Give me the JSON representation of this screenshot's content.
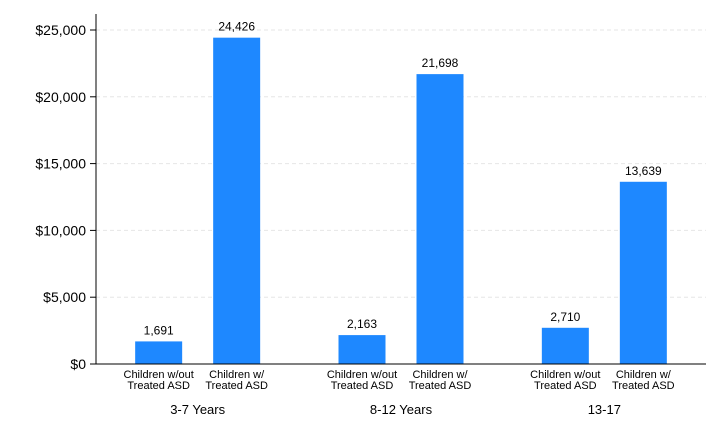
{
  "chart_data": {
    "type": "bar",
    "title": "",
    "xlabel": "",
    "ylabel": "",
    "ylim": [
      0,
      25000
    ],
    "yticks": [
      0,
      5000,
      10000,
      15000,
      20000,
      25000
    ],
    "ytick_labels": [
      "$0",
      "$5,000",
      "$10,000",
      "$15,000",
      "$20,000",
      "$25,000"
    ],
    "grid": true,
    "bar_color": "#1e88ff",
    "groups": [
      {
        "label": "3-7 Years",
        "bars": [
          {
            "category": [
              "Children w/out",
              "Treated ASD"
            ],
            "value": 1691,
            "value_label": "1,691"
          },
          {
            "category": [
              "Children w/",
              "Treated ASD"
            ],
            "value": 24426,
            "value_label": "24,426"
          }
        ]
      },
      {
        "label": "8-12 Years",
        "bars": [
          {
            "category": [
              "Children w/out",
              "Treated ASD"
            ],
            "value": 2163,
            "value_label": "2,163"
          },
          {
            "category": [
              "Children w/",
              "Treated ASD"
            ],
            "value": 21698,
            "value_label": "21,698"
          }
        ]
      },
      {
        "label": "13-17",
        "bars": [
          {
            "category": [
              "Children w/out",
              "Treated ASD"
            ],
            "value": 2710,
            "value_label": "2,710"
          },
          {
            "category": [
              "Children w/",
              "Treated ASD"
            ],
            "value": 13639,
            "value_label": "13,639"
          }
        ]
      }
    ]
  }
}
